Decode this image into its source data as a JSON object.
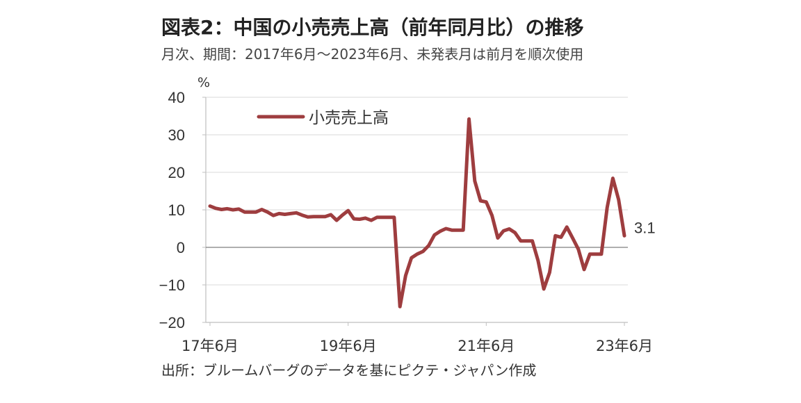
{
  "title": "図表2：中国の小売売上高（前年同月比）の推移",
  "subtitle": "月次、期間：2017年6月～2023年6月、未発表月は前月を順次使用",
  "source": "出所：ブルームバーグのデータを基にピクテ・ジャパン作成",
  "chart_data": {
    "type": "line",
    "unit": "%",
    "ylim": [
      -20,
      40
    ],
    "yticks": [
      -20,
      -10,
      0,
      10,
      20,
      30,
      40
    ],
    "ytick_labels": [
      "−20",
      "−10",
      "0",
      "10",
      "20",
      "30",
      "40"
    ],
    "xticks": [
      {
        "label": "17年6月",
        "date": "2017-06"
      },
      {
        "label": "19年6月",
        "date": "2019-06"
      },
      {
        "label": "21年6月",
        "date": "2021-06"
      },
      {
        "label": "23年6月",
        "date": "2023-06"
      }
    ],
    "grid": "horizontal",
    "legend_position": "top-left",
    "series": [
      {
        "name": "小売売上高",
        "color": "#9e3d3f",
        "end_label": "3.1",
        "points": [
          [
            "2017-06",
            11.0
          ],
          [
            "2017-07",
            10.4
          ],
          [
            "2017-08",
            10.1
          ],
          [
            "2017-09",
            10.3
          ],
          [
            "2017-10",
            10.0
          ],
          [
            "2017-11",
            10.2
          ],
          [
            "2017-12",
            9.4
          ],
          [
            "2018-01",
            9.4
          ],
          [
            "2018-02",
            9.4
          ],
          [
            "2018-03",
            10.1
          ],
          [
            "2018-04",
            9.4
          ],
          [
            "2018-05",
            8.5
          ],
          [
            "2018-06",
            9.0
          ],
          [
            "2018-07",
            8.8
          ],
          [
            "2018-08",
            9.0
          ],
          [
            "2018-09",
            9.2
          ],
          [
            "2018-10",
            8.6
          ],
          [
            "2018-11",
            8.1
          ],
          [
            "2018-12",
            8.2
          ],
          [
            "2019-01",
            8.2
          ],
          [
            "2019-02",
            8.2
          ],
          [
            "2019-03",
            8.7
          ],
          [
            "2019-04",
            7.2
          ],
          [
            "2019-05",
            8.6
          ],
          [
            "2019-06",
            9.8
          ],
          [
            "2019-07",
            7.6
          ],
          [
            "2019-08",
            7.5
          ],
          [
            "2019-09",
            7.8
          ],
          [
            "2019-10",
            7.2
          ],
          [
            "2019-11",
            8.0
          ],
          [
            "2019-12",
            8.0
          ],
          [
            "2020-01",
            8.0
          ],
          [
            "2020-02",
            8.0
          ],
          [
            "2020-03",
            -15.8
          ],
          [
            "2020-04",
            -7.5
          ],
          [
            "2020-05",
            -2.8
          ],
          [
            "2020-06",
            -1.8
          ],
          [
            "2020-07",
            -1.1
          ],
          [
            "2020-08",
            0.5
          ],
          [
            "2020-09",
            3.3
          ],
          [
            "2020-10",
            4.3
          ],
          [
            "2020-11",
            5.0
          ],
          [
            "2020-12",
            4.6
          ],
          [
            "2021-01",
            4.6
          ],
          [
            "2021-02",
            4.6
          ],
          [
            "2021-03",
            34.2
          ],
          [
            "2021-04",
            17.7
          ],
          [
            "2021-05",
            12.4
          ],
          [
            "2021-06",
            12.1
          ],
          [
            "2021-07",
            8.5
          ],
          [
            "2021-08",
            2.5
          ],
          [
            "2021-09",
            4.4
          ],
          [
            "2021-10",
            4.9
          ],
          [
            "2021-11",
            3.9
          ],
          [
            "2021-12",
            1.7
          ],
          [
            "2022-01",
            1.7
          ],
          [
            "2022-02",
            1.7
          ],
          [
            "2022-03",
            -3.5
          ],
          [
            "2022-04",
            -11.1
          ],
          [
            "2022-05",
            -6.7
          ],
          [
            "2022-06",
            3.1
          ],
          [
            "2022-07",
            2.7
          ],
          [
            "2022-08",
            5.4
          ],
          [
            "2022-09",
            2.5
          ],
          [
            "2022-10",
            -0.5
          ],
          [
            "2022-11",
            -5.9
          ],
          [
            "2022-12",
            -1.8
          ],
          [
            "2023-01",
            -1.8
          ],
          [
            "2023-02",
            -1.8
          ],
          [
            "2023-03",
            10.6
          ],
          [
            "2023-04",
            18.4
          ],
          [
            "2023-05",
            12.7
          ],
          [
            "2023-06",
            3.1
          ]
        ]
      }
    ]
  }
}
